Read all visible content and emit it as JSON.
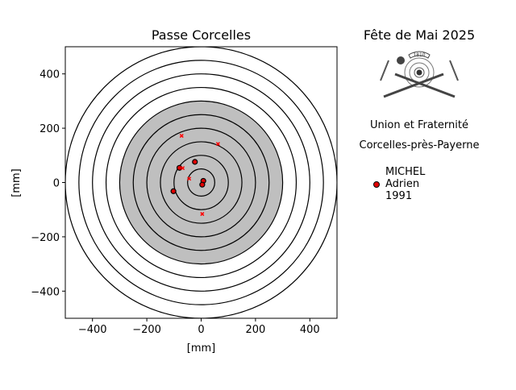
{
  "chart_data": {
    "type": "scatter",
    "title": "Passe Corcelles",
    "xlabel": "[mm]",
    "ylabel": "[mm]",
    "xlim": [
      -500,
      500
    ],
    "ylim": [
      -500,
      500
    ],
    "xticks": [
      -400,
      -200,
      0,
      200,
      400
    ],
    "yticks": [
      -400,
      -200,
      0,
      200,
      400
    ],
    "tick_labels_x": [
      "−400",
      "−200",
      "0",
      "200",
      "400"
    ],
    "tick_labels_y": [
      "−400",
      "−200",
      "0",
      "200",
      "400"
    ],
    "grid": false,
    "target": {
      "ring_radii": [
        50,
        100,
        150,
        200,
        250,
        300,
        350,
        400,
        450,
        500
      ],
      "black_zone_radius": 300,
      "black_zone_color": "#bfbfbf"
    },
    "series": [
      {
        "name": "MICHEL\nAdrien\n1991",
        "marker": "circle",
        "color": "#e00000",
        "points": [
          [
            -23,
            76
          ],
          [
            -80,
            54
          ],
          [
            8,
            6
          ],
          [
            4,
            -8
          ],
          [
            -102,
            -32
          ]
        ]
      },
      {
        "marker": "x",
        "color": "#ff0000",
        "points": [
          [
            -72,
            172
          ],
          [
            62,
            142
          ],
          [
            -68,
            53
          ],
          [
            -44,
            14
          ],
          [
            4,
            -116
          ]
        ]
      }
    ],
    "legend": {
      "placement": "right",
      "entries": [
        "MICHEL",
        "Adrien",
        "1991"
      ]
    }
  },
  "side": {
    "title": "Fête de Mai 2025",
    "logo_text": "1810",
    "line1": "Union et Fraternité",
    "line2": "Corcelles-près-Payerne"
  }
}
